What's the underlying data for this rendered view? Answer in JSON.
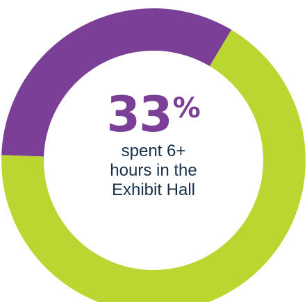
{
  "chart_data": {
    "type": "pie",
    "variant": "donut",
    "slices": [
      {
        "value": 33,
        "color": "#7b3f98"
      },
      {
        "value": 67,
        "color": "#bcd631"
      }
    ],
    "center_value": "33",
    "center_unit": "%",
    "caption_lines": [
      "spent 6+",
      "hours in the",
      "Exhibit Hall"
    ]
  },
  "colors": {
    "highlight": "#7b3f98",
    "remainder": "#bcd631",
    "caption_text": "#15304a",
    "background": "#ffffff"
  }
}
